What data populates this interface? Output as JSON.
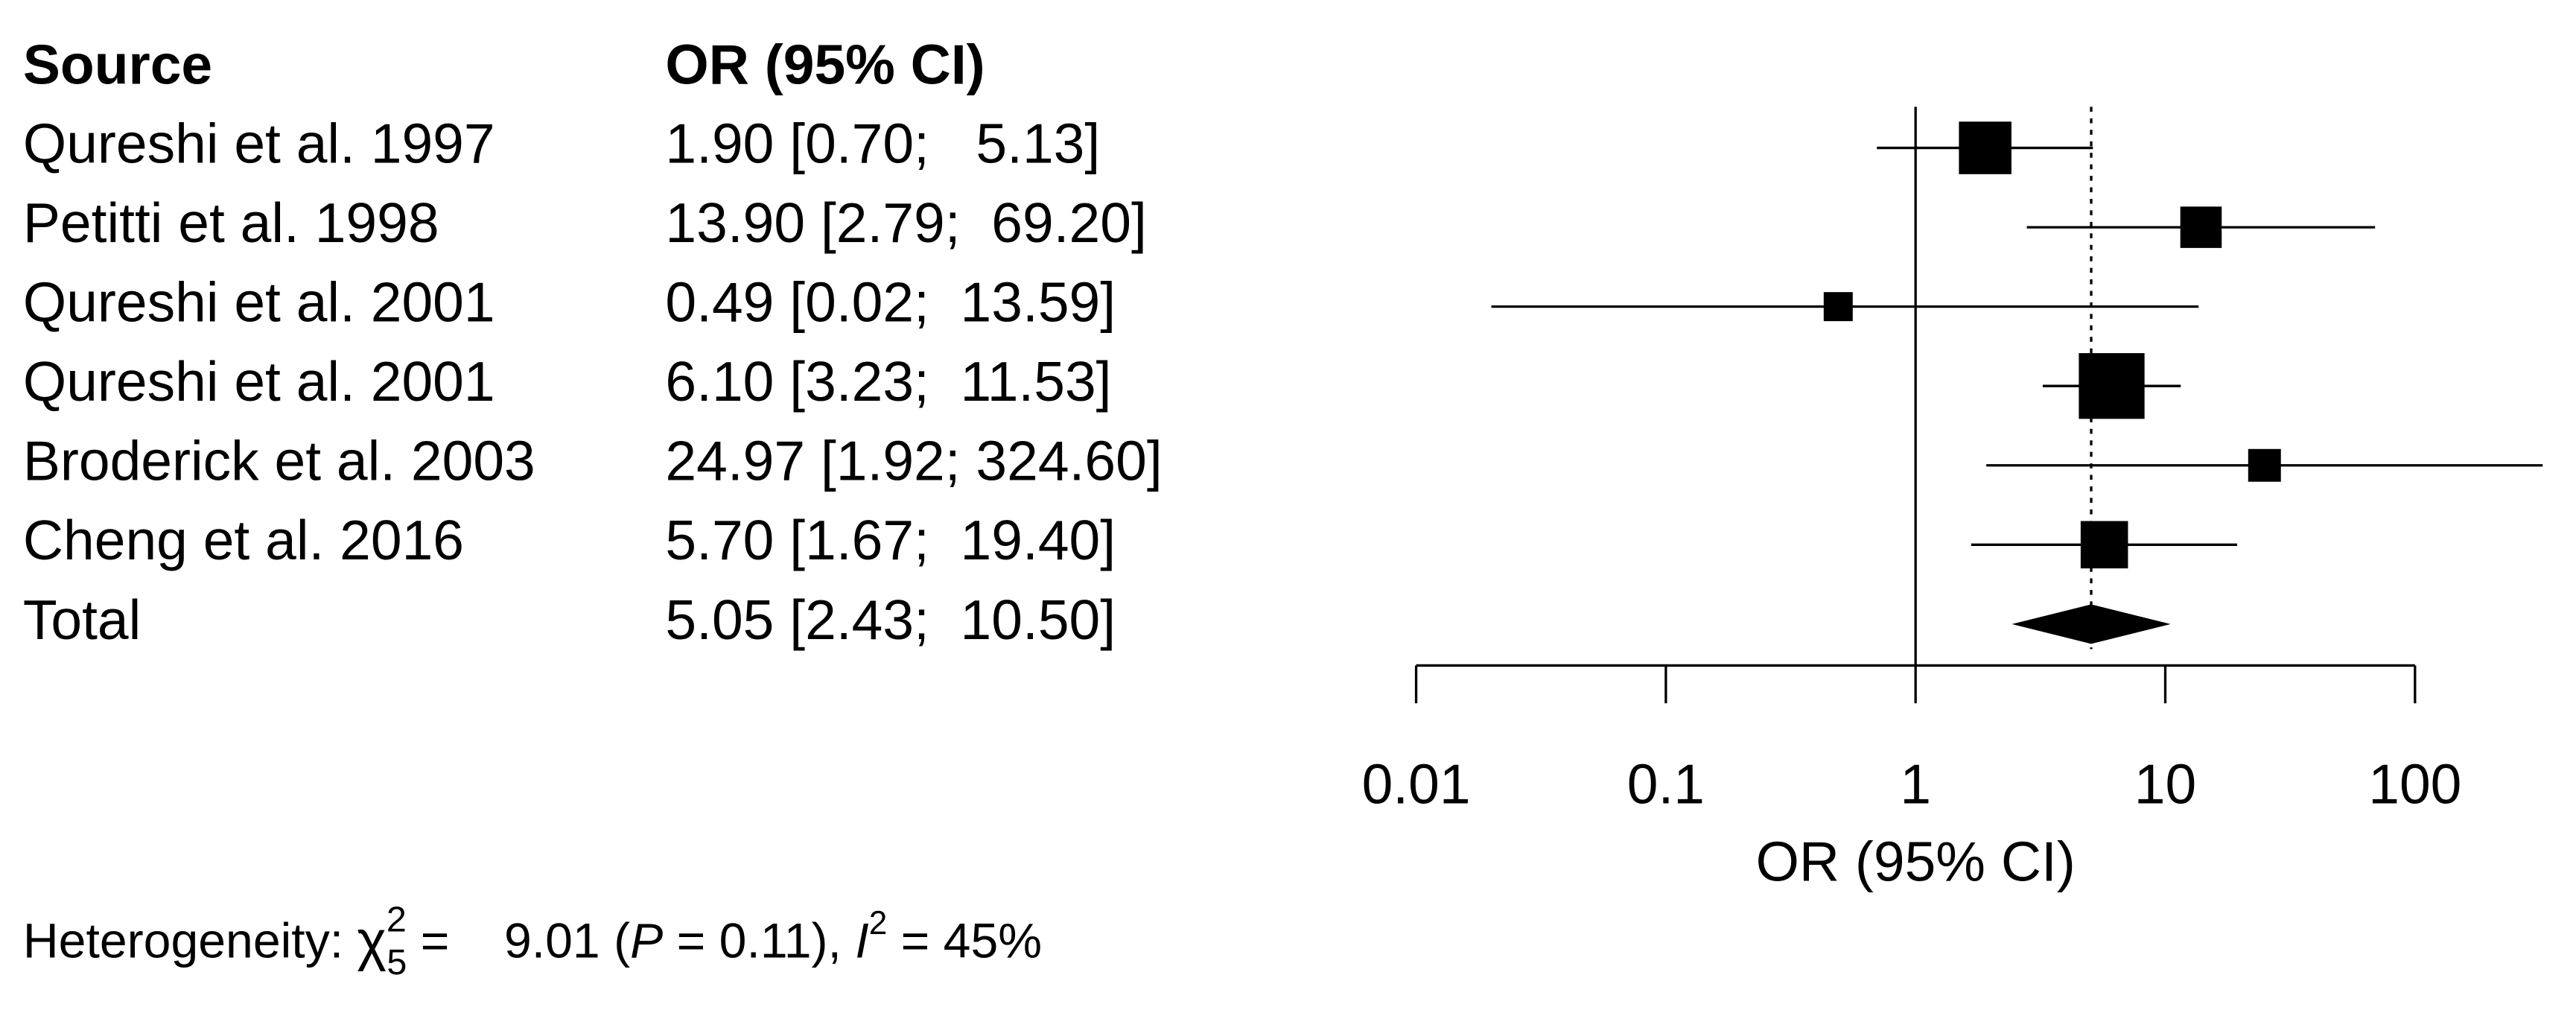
{
  "chart_data": {
    "type": "forest",
    "headers": [
      "Source",
      "OR (95% CI)"
    ],
    "categories": [
      "Qureshi et al. 1997",
      "Petitti et al. 1998",
      "Qureshi et al. 2001",
      "Qureshi et al. 2001",
      "Broderick et al. 2003",
      "Cheng et al. 2016"
    ],
    "values": [
      1.9,
      13.9,
      0.49,
      6.1,
      24.97,
      5.7
    ],
    "lower": [
      0.7,
      2.79,
      0.02,
      3.23,
      1.92,
      1.67
    ],
    "upper": [
      5.13,
      69.2,
      13.59,
      11.53,
      324.6,
      19.4
    ],
    "value_labels": [
      "1.90 [0.70;   5.13]",
      "13.90 [2.79;  69.20]",
      "0.49 [0.02;  13.59]",
      "6.10 [3.23;  11.53]",
      "24.97 [1.92; 324.60]",
      "5.70 [1.67;  19.40]"
    ],
    "summary": {
      "name": "Total",
      "value": 5.05,
      "lower": 2.43,
      "upper": 10.5,
      "value_label": "5.05 [2.43;  10.50]"
    },
    "reference_line": 1,
    "x_label": "OR (95% CI)",
    "log_x": true,
    "xlim": [
      0.01,
      100
    ],
    "xticks": [
      0.01,
      0.1,
      1,
      10,
      100
    ],
    "color": "#000000",
    "heterogeneity": {
      "prefix": "Heterogeneity: ",
      "symbol": "χ",
      "sup": "2",
      "df": "5",
      "chi2_text": " =    9.01 (",
      "p_symbol": "P",
      "p_text": " = 0.11), ",
      "i_symbol": "I",
      "i_sup": "2",
      "i_text": " = 45%"
    }
  }
}
